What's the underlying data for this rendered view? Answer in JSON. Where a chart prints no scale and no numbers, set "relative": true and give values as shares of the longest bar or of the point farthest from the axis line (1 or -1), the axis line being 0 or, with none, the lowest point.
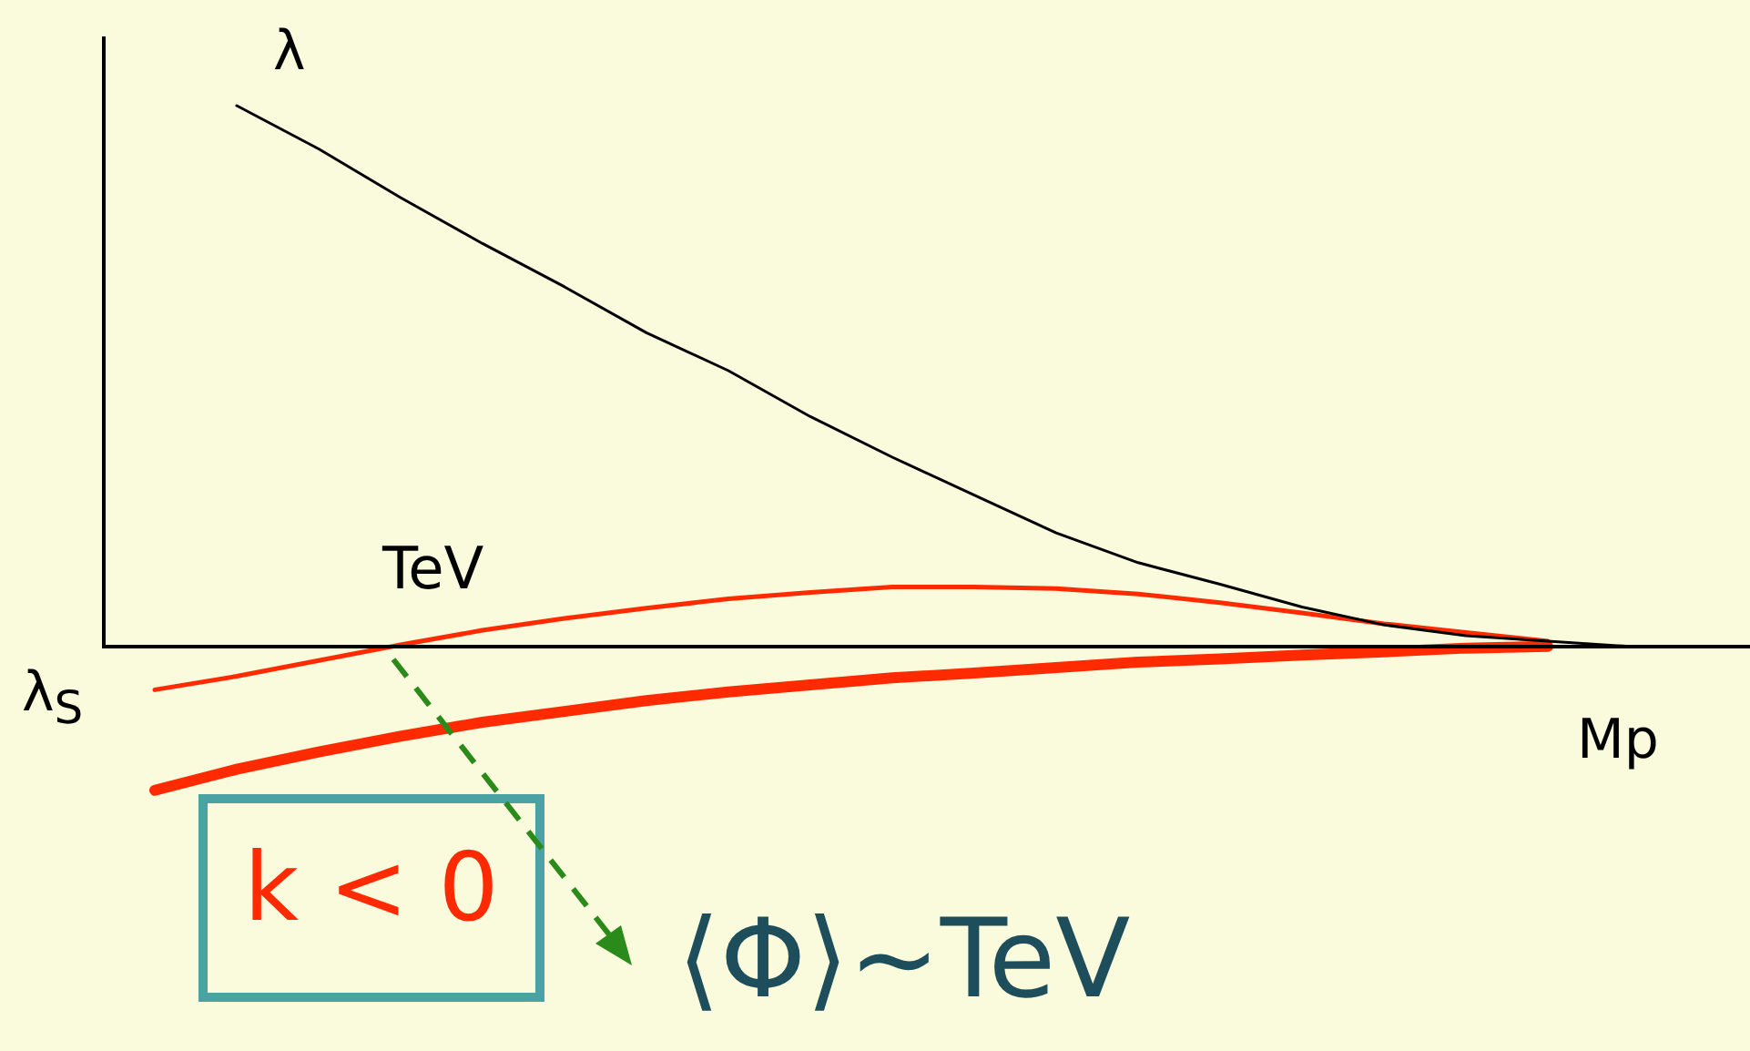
{
  "chart_data": {
    "type": "line",
    "relative": true,
    "marker": "none",
    "line_style": "solid",
    "categories": [
      null,
      null,
      null,
      null,
      null,
      null,
      null,
      null,
      null,
      null,
      null,
      null,
      null,
      null,
      null,
      null,
      null,
      null,
      null
    ],
    "series": [
      {
        "color": "#000000",
        "values": [
          null,
          1,
          0.92,
          0.83,
          0.745,
          0.665,
          0.58,
          0.51,
          0.425,
          0.35,
          0.28,
          0.21,
          0.155,
          0.115,
          0.073,
          0.04,
          0.02,
          0.01,
          0
        ]
      },
      {
        "color": "#ff2a00",
        "values": [
          -0.08,
          -0.055,
          -0.026,
          0.003,
          0.03,
          0.052,
          0.071,
          0.088,
          0.1,
          0.11,
          0.11,
          0.107,
          0.097,
          0.081,
          0.062,
          0.042,
          0.026,
          0.01,
          null
        ]
      },
      {
        "color": "#ff2a00",
        "values": [
          -0.266,
          -0.227,
          -0.195,
          -0.166,
          -0.14,
          -0.12,
          -0.1,
          -0.084,
          -0.071,
          -0.058,
          -0.049,
          -0.039,
          -0.029,
          -0.023,
          -0.016,
          -0.01,
          -0.003,
          0,
          null
        ]
      }
    ],
    "annotations": [
      "λ",
      "TeV",
      "λ$_{S}$",
      "Mp",
      "k < 0",
      "⟨Φ⟩∼TeV"
    ]
  }
}
